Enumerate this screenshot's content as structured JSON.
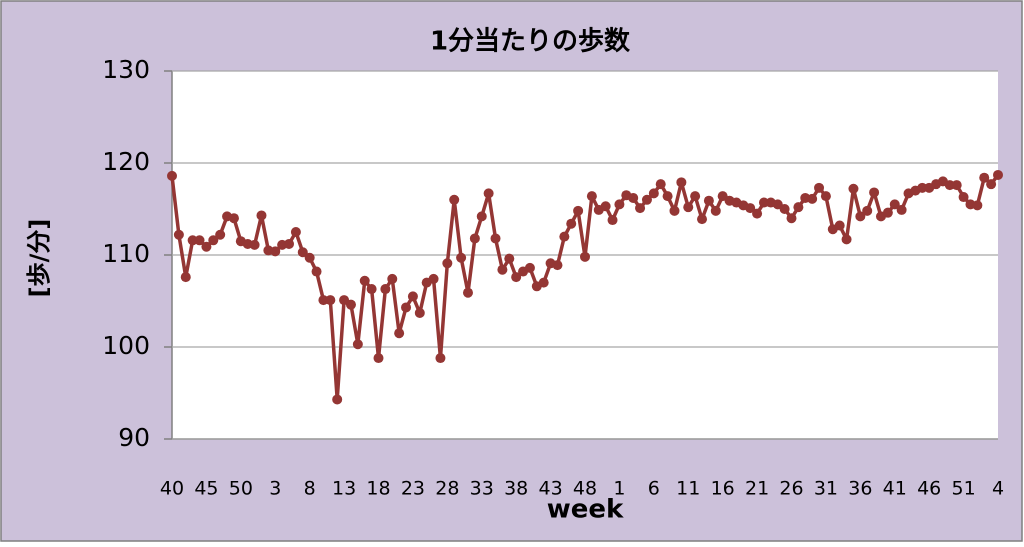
{
  "chart_data": {
    "type": "line",
    "title": "1分当たりの歩数",
    "x_label": "week",
    "y_label": "[歩/分]",
    "categories": [
      "40",
      null,
      null,
      null,
      null,
      "45",
      null,
      null,
      null,
      null,
      "50",
      null,
      null,
      null,
      null,
      "3",
      null,
      null,
      null,
      null,
      "8",
      null,
      null,
      null,
      null,
      "13",
      null,
      null,
      null,
      null,
      "18",
      null,
      null,
      null,
      null,
      "23",
      null,
      null,
      null,
      null,
      "28",
      null,
      null,
      null,
      null,
      "33",
      null,
      null,
      null,
      null,
      "38",
      null,
      null,
      null,
      null,
      "43",
      null,
      null,
      null,
      null,
      "48",
      null,
      null,
      null,
      null,
      "1",
      null,
      null,
      null,
      null,
      "6",
      null,
      null,
      null,
      null,
      "11",
      null,
      null,
      null,
      null,
      "16",
      null,
      null,
      null,
      null,
      "21",
      null,
      null,
      null,
      null,
      "26",
      null,
      null,
      null,
      null,
      "31",
      null,
      null,
      null,
      null,
      "36",
      null,
      null,
      null,
      null,
      "41",
      null,
      null,
      null,
      null,
      "46",
      null,
      null,
      null,
      null,
      "51",
      null,
      null,
      null,
      null,
      "4"
    ],
    "values": [
      118.6,
      112.2,
      107.6,
      111.6,
      111.6,
      110.9,
      111.6,
      112.2,
      114.2,
      114.0,
      111.5,
      111.2,
      111.1,
      114.3,
      110.5,
      110.4,
      111.1,
      111.2,
      112.5,
      110.3,
      109.7,
      108.2,
      105.1,
      105.1,
      94.3,
      105.1,
      104.6,
      100.3,
      107.2,
      106.3,
      98.8,
      106.3,
      107.4,
      101.5,
      104.3,
      105.5,
      103.7,
      107.0,
      107.4,
      98.8,
      109.1,
      116.0,
      109.7,
      105.9,
      111.8,
      114.2,
      116.7,
      111.8,
      108.4,
      109.6,
      107.6,
      108.2,
      108.6,
      106.6,
      107.0,
      109.1,
      108.9,
      112.0,
      113.4,
      114.8,
      109.8,
      116.4,
      114.9,
      115.3,
      113.8,
      115.5,
      116.5,
      116.2,
      115.1,
      116.0,
      116.7,
      117.7,
      116.4,
      114.8,
      117.9,
      115.2,
      116.4,
      113.9,
      115.9,
      114.8,
      116.4,
      115.9,
      115.7,
      115.4,
      115.1,
      114.5,
      115.7,
      115.7,
      115.5,
      115.0,
      114.0,
      115.2,
      116.2,
      116.1,
      117.3,
      116.4,
      112.8,
      113.2,
      111.7,
      117.2,
      114.2,
      114.8,
      116.8,
      114.2,
      114.6,
      115.5,
      114.9,
      116.7,
      117.0,
      117.3,
      117.3,
      117.7,
      118.0,
      117.6,
      117.6,
      116.3,
      115.5,
      115.4,
      118.4,
      117.7,
      118.7
    ],
    "color": "#943634",
    "ylim": [
      90,
      130
    ],
    "yticks": [
      90,
      100,
      110,
      120,
      130
    ],
    "grid": true
  }
}
